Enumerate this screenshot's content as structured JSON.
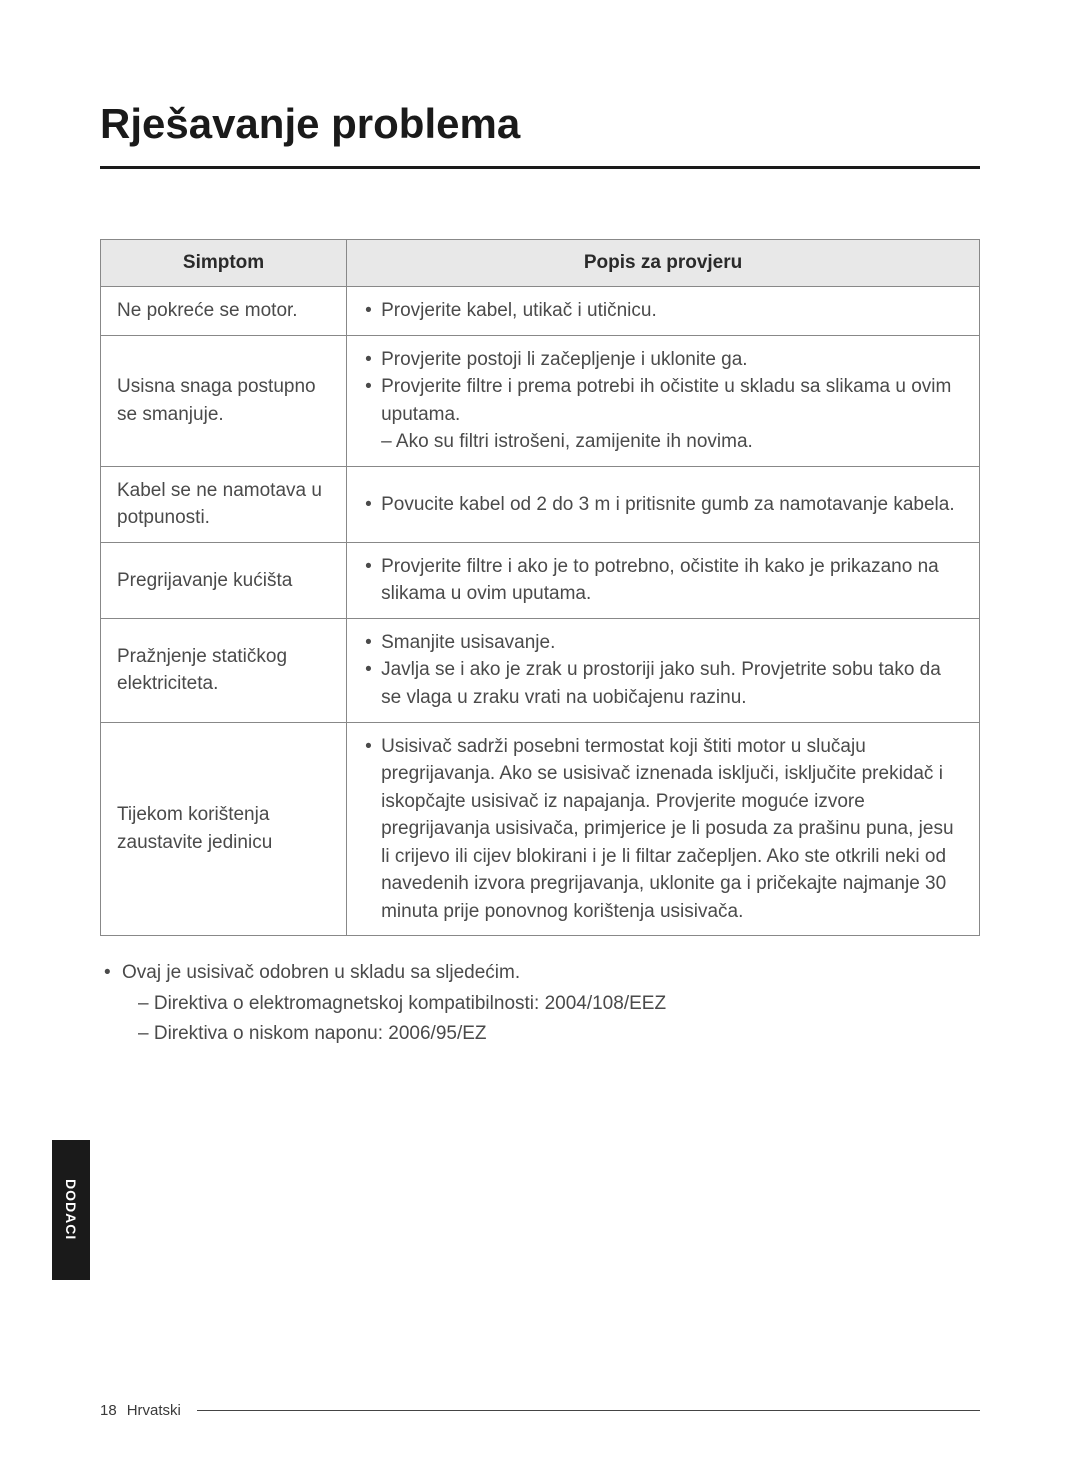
{
  "title": "Rješavanje problema",
  "table": {
    "headers": {
      "symptom": "Simptom",
      "checklist": "Popis za provjeru"
    },
    "rows": [
      {
        "symptom": "Ne pokreće se motor.",
        "items": [
          "Provjerite kabel, utikač i utičnicu."
        ]
      },
      {
        "symptom": "Usisna snaga postupno se smanjuje.",
        "items": [
          "Provjerite postoji li začepljenje i uklonite ga.",
          "Provjerite filtre i prema potrebi ih očistite u skladu sa slikama u ovim uputama."
        ],
        "sub": "– Ako su filtri istrošeni, zamijenite ih novima."
      },
      {
        "symptom": "Kabel se ne namotava u potpunosti.",
        "items": [
          "Povucite kabel od 2 do 3 m i pritisnite gumb za namotavanje kabela."
        ]
      },
      {
        "symptom": "Pregrijavanje kućišta",
        "items": [
          "Provjerite filtre i ako je to potrebno, očistite ih kako je prikazano na slikama u ovim uputama."
        ]
      },
      {
        "symptom": "Pražnjenje statičkog elektriciteta.",
        "items": [
          "Smanjite usisavanje.",
          "Javlja se i ako je zrak u prostoriji jako suh. Provjetrite sobu tako da se vlaga u zraku vrati na uobičajenu razinu."
        ]
      },
      {
        "symptom": "Tijekom korištenja zaustavite jedinicu",
        "items": [
          "Usisivač sadrži posebni termostat koji štiti motor u slučaju pregrijavanja. Ako se usisivač iznenada isključi, isključite prekidač i iskopčajte usisivač iz napajanja. Provjerite moguće izvore pregrijavanja usisivača, primjerice je li posuda za prašinu puna, jesu li crijevo ili cijev blokirani i je li filtar začepljen. Ako ste otkrili neki od navedenih izvora pregrijavanja, uklonite ga i pričekajte najmanje 30 minuta prije ponovnog korištenja usisivača."
        ]
      }
    ]
  },
  "notes": {
    "main": "Ovaj je usisivač odobren u skladu sa sljedećim.",
    "line1": "– Direktiva o elektromagnetskoj kompatibilnosti: 2004/108/EEZ",
    "line2": "– Direktiva o niskom naponu: 2006/95/EZ"
  },
  "sideTab": "DODACI",
  "footer": {
    "page": "18",
    "lang": "Hrvatski"
  }
}
